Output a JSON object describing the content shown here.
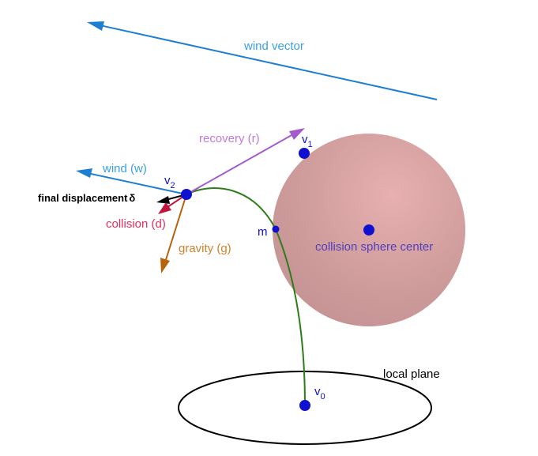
{
  "colors": {
    "wind": "#1e7fd0",
    "wind_text": "#3aa0e0",
    "recovery": "#a35cc9",
    "recovery_text": "#c07ad8",
    "collision": "#c0143c",
    "collision_text": "#e0305a",
    "gravity": "#b8620e",
    "gravity_text": "#d0802a",
    "final": "#000000",
    "point": "#1010d0",
    "curve": "#2e7d1a",
    "sphere": "#d9a0a0",
    "sphere_text": "#5040c0"
  },
  "labels": {
    "wind_vector": "wind vector",
    "recovery": "recovery (r)",
    "wind": "wind (w)",
    "final_displacement": "final displacement",
    "delta": "δ",
    "collision": "collision (d)",
    "gravity": "gravity (g)",
    "sphere_center": "collision sphere center",
    "local_plane": "local plane",
    "m": "m",
    "v1_base": "v",
    "v1_sub": "1",
    "v2_base": "v",
    "v2_sub": "2",
    "v0_base": "v",
    "v0_sub": "0"
  }
}
